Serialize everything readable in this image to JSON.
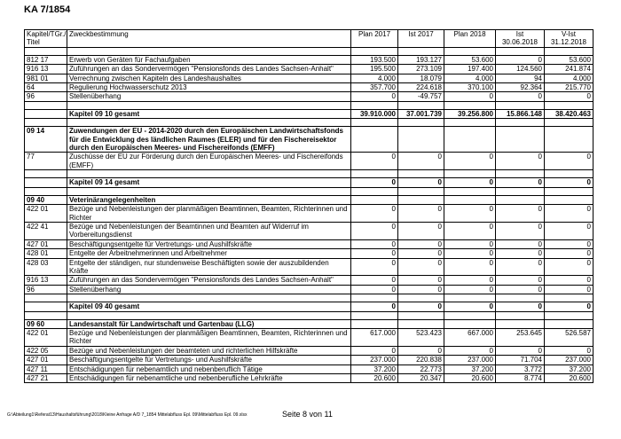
{
  "title": "KA 7/1854",
  "table": {
    "columns": [
      "Kapitel/TGr./ Titel",
      "Zweckbestimmung",
      "Plan 2017",
      "Ist 2017",
      "Plan 2018",
      "Ist\n30.06.2018",
      "V-Ist\n31.12.2018"
    ],
    "groups": [
      [
        {
          "title": "812 17",
          "purpose": "Erwerb von Geräten für Fachaufgaben",
          "values": [
            "193.500",
            "193.127",
            "53.600",
            "0",
            "53.600"
          ]
        },
        {
          "title": "916 13",
          "purpose": "Zuführungen an das Sondervermögen \"Pensionsfonds des Landes Sachsen-Anhalt\"",
          "values": [
            "195.500",
            "273.109",
            "197.400",
            "124.560",
            "241.874"
          ]
        },
        {
          "title": "981 01",
          "purpose": "Verrechnung zwischen Kapiteln des Landeshaushaltes",
          "values": [
            "4.000",
            "18.079",
            "4.000",
            "94",
            "4.000"
          ]
        },
        {
          "title": "64",
          "purpose": "Regulierung Hochwasserschutz 2013",
          "values": [
            "357.700",
            "224.618",
            "370.100",
            "92.364",
            "215.770"
          ]
        },
        {
          "title": "96",
          "purpose": "Stellenüberhang",
          "values": [
            "0",
            "-49.757",
            "0",
            "0",
            "0"
          ]
        }
      ],
      [
        {
          "purpose": "Kapitel 09 10 gesamt",
          "values": [
            "39.910.000",
            "37.001.739",
            "39.256.800",
            "15.866.148",
            "38.420.463"
          ]
        }
      ],
      [
        {
          "title": "09 14",
          "purpose": "Zuwendungen der EU - 2014-2020 durch den Europäischen Landwirtschaftsfonds für die Entwicklung des ländlichen Raumes (ELER) und für den Fischereisektor durch den Europäischen Meeres- und Fischereifonds (EMFF)"
        },
        {
          "title": "77",
          "purpose": "Zuschüsse der EU zur Förderung durch den Europäischen Meeres- und Fischereifonds (EMFF)",
          "values": [
            "0",
            "0",
            "0",
            "0",
            "0"
          ]
        }
      ],
      [
        {
          "purpose": "Kapitel 09 14 gesamt",
          "values": [
            "0",
            "0",
            "0",
            "0",
            "0"
          ]
        }
      ],
      [
        {
          "title": "09 40",
          "purpose": "Veterinärangelegenheiten"
        },
        {
          "title": "422 01",
          "purpose": "Bezüge und Nebenleistungen der planmäßigen Beamtinnen, Beamten, Richterinnen und Richter",
          "values": [
            "0",
            "0",
            "0",
            "0",
            "0"
          ]
        },
        {
          "title": "422 41",
          "purpose": "Bezüge und Nebenleistungen der Beamtinnen und Beamten auf Widerruf im Vorbereitungsdienst",
          "values": [
            "0",
            "0",
            "0",
            "0",
            "0"
          ]
        },
        {
          "title": "427 01",
          "purpose": "Beschäftigungsentgelte für Vertretungs- und Aushilfskräfte",
          "values": [
            "0",
            "0",
            "0",
            "0",
            "0"
          ]
        },
        {
          "title": "428 01",
          "purpose": "Entgelte der Arbeitnehmerinnen und Arbeitnehmer",
          "values": [
            "0",
            "0",
            "0",
            "0",
            "0"
          ]
        },
        {
          "title": "428 03",
          "purpose": "Entgelte der ständigen, nur stundenweise Beschäftigten sowie der auszubildenden Kräfte",
          "values": [
            "0",
            "0",
            "0",
            "0",
            "0"
          ]
        },
        {
          "title": "916 13",
          "purpose": "Zuführungen an das Sondervermögen \"Pensionsfonds des Landes Sachsen-Anhalt\"",
          "values": [
            "0",
            "0",
            "0",
            "0",
            "0"
          ]
        },
        {
          "title": "96",
          "purpose": "Stellenüberhang",
          "values": [
            "0",
            "0",
            "0",
            "0",
            "0"
          ]
        }
      ],
      [
        {
          "purpose": "Kapitel 09 40 gesamt",
          "values": [
            "0",
            "0",
            "0",
            "0",
            "0"
          ]
        }
      ],
      [
        {
          "title": "09 60",
          "purpose": "Landesanstalt für Landwirtschaft und Gartenbau (LLG)"
        },
        {
          "title": "422 01",
          "purpose": "Bezüge und Nebenleistungen der planmäßigen Beamtinnen, Beamten, Richterinnen und Richter",
          "values": [
            "617.000",
            "523.423",
            "667.000",
            "253.645",
            "526.587"
          ]
        },
        {
          "title": "422 05",
          "purpose": "Bezüge und Nebenleistungen der beamteten und richterlichen Hilfskräfte",
          "values": [
            "0",
            "0",
            "0",
            "0",
            "0"
          ]
        },
        {
          "title": "427 01",
          "purpose": "Beschäftigungsentgelte für Vertretungs- und Aushilfskräfte",
          "values": [
            "237.000",
            "220.838",
            "237.000",
            "71.704",
            "237.000"
          ]
        },
        {
          "title": "427 11",
          "purpose": "Entschädigungen für nebenamtlich und nebenberuflich Tätige",
          "values": [
            "37.200",
            "22.773",
            "37.200",
            "3.772",
            "37.200"
          ]
        },
        {
          "title": "427 21",
          "purpose": "Entschädigungen für nebenamtliche und nebenberufliche Lehrkräfte",
          "values": [
            "20.600",
            "20.347",
            "20.600",
            "8.774",
            "20.600"
          ]
        }
      ]
    ]
  },
  "footer": {
    "path": "G:\\Abteilung1\\Referat13\\Haushaltsführung\\2018\\Kleine Anfrage A/D 7_1854 Mittelabfluss Epl. 09\\Mittelabfluss Epl. 09.xlsx",
    "page": "Seite 8 von 11"
  }
}
